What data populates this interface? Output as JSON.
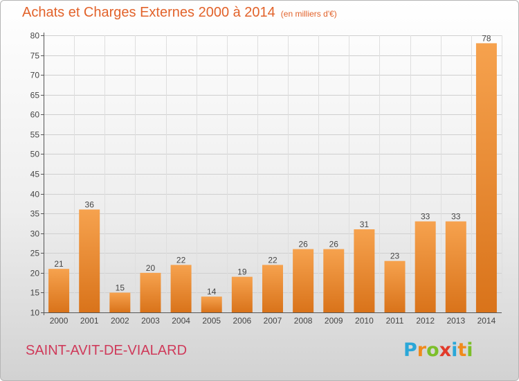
{
  "header": {
    "title": "Achats et Charges Externes 2000 à 2014",
    "unit": "(en milliers d'€)"
  },
  "footer": {
    "commune": "SAINT-AVIT-DE-VIALARD",
    "logo_letters": [
      "P",
      "r",
      "o",
      "x",
      "i",
      "t",
      "i"
    ],
    "logo_colors": [
      "#2aa7d8",
      "#f08a1c",
      "#7cbf2a",
      "#e23a2a",
      "#2aa7d8",
      "#f08a1c",
      "#7cbf2a"
    ]
  },
  "colors": {
    "title": "#e2622a",
    "commune": "#cf3a5a",
    "bar_light": "#f6a24e",
    "bar_dark": "#d9731a"
  },
  "chart_data": {
    "type": "bar",
    "categories": [
      "2000",
      "2001",
      "2002",
      "2003",
      "2004",
      "2005",
      "2006",
      "2007",
      "2008",
      "2009",
      "2010",
      "2011",
      "2012",
      "2013",
      "2014"
    ],
    "values": [
      21,
      36,
      15,
      20,
      22,
      14,
      19,
      22,
      26,
      26,
      31,
      23,
      33,
      33,
      78
    ],
    "ylim": [
      10,
      80
    ],
    "yticks": [
      10,
      15,
      20,
      25,
      30,
      35,
      40,
      45,
      50,
      55,
      60,
      65,
      70,
      75,
      80
    ],
    "grid": true
  }
}
